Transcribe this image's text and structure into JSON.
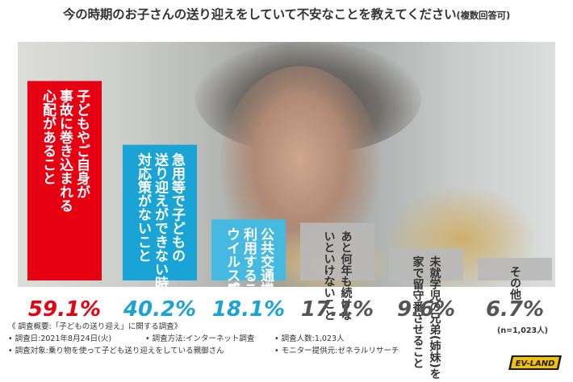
{
  "title": {
    "main": "今の時期のお子さんの送り迎えをしていて不安なことを教えてください",
    "suffix": "(複数回答可)"
  },
  "chart_data": {
    "type": "bar",
    "title": "今の時期のお子さんの送り迎えをしていて不安なことを教えてください(複数回答可)",
    "unit": "%",
    "ylim": [
      0,
      64
    ],
    "grid": false,
    "categories": [
      [
        "子どもやご自身が",
        "事故に巻き込まれる",
        "心配があること"
      ],
      [
        "急用等で子どもの",
        "送り迎えができない時の",
        "対応策がないこと"
      ],
      [
        "公共交通機関を",
        "利用することによる、",
        "ウイルス感染のリスク"
      ],
      [
        "あと何年も続けな",
        "いといけないこと"
      ],
      [
        "未就学児の兄弟(姉妹)を",
        "家で留守番させること"
      ],
      [
        "その他"
      ]
    ],
    "values": [
      59.1,
      40.2,
      18.1,
      17.1,
      9.6,
      6.7
    ],
    "value_labels": [
      "59.1%",
      "40.2%",
      "18.1%",
      "17.1%",
      "9.6%",
      "6.7%"
    ],
    "colors": [
      "#e60012",
      "#1aa4d6",
      "#45b9e0",
      "#b9b9b9",
      "#b9b9b9",
      "#b9b9b9"
    ],
    "label_colors": [
      "#e60012",
      "#1aa4d6",
      "#1aa4d6",
      "#555555",
      "#555555",
      "#555555"
    ],
    "n_label": "(n=1,023人)"
  },
  "footer": {
    "heading": "《 調査概要:「子どもの送り迎え」に関する調査》",
    "period": "• 調査日:2021年8月24日(火)",
    "method": "• 調査方法:インターネット調査",
    "count": "• 調査人数:1,023人",
    "target": "• 調査対象:乗り物を使って子ども送り迎えをしている親御さん",
    "provider": "• モニター提供元:ゼネラルリサーチ"
  },
  "logo": {
    "text": "EV-LAND",
    "color": "#f2c200"
  }
}
